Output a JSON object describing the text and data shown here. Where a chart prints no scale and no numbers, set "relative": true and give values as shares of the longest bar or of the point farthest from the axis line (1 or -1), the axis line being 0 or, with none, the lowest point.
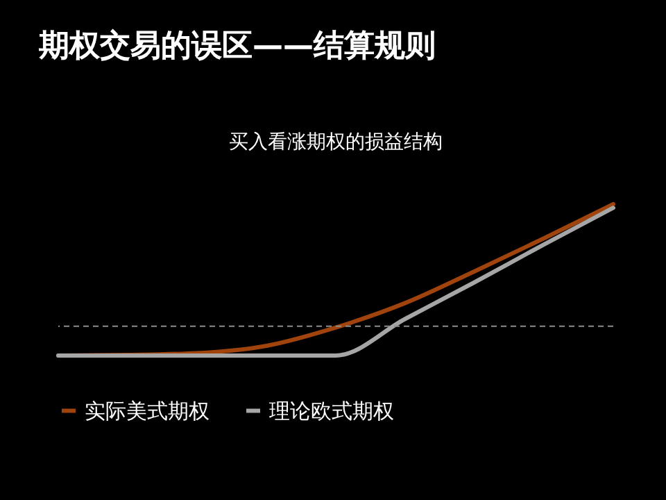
{
  "chart_data": {
    "type": "line",
    "title": "期权交易的误区——结算规则",
    "subtitle": "买入看涨期权的损益结构",
    "relative": true,
    "categories": [
      null,
      null,
      null,
      null,
      null,
      null,
      null,
      null,
      null
    ],
    "series": [
      {
        "name": "实际美式期权",
        "color": "#a0430c",
        "values": [
          -0.24,
          -0.235,
          -0.22,
          -0.16,
          -0.01,
          0.19,
          0.45,
          0.72,
          1.0
        ]
      },
      {
        "name": "理论欧式期权",
        "color": "#a6a6a6",
        "values": [
          -0.24,
          -0.24,
          -0.24,
          -0.24,
          -0.24,
          0.06,
          0.36,
          0.67,
          0.97
        ]
      }
    ],
    "ref_lines": [
      {
        "axis": "y",
        "value": 0,
        "color": "#8c8c8c",
        "line_style": "dashed"
      }
    ],
    "legend": "bottom",
    "line_style": "solid"
  }
}
